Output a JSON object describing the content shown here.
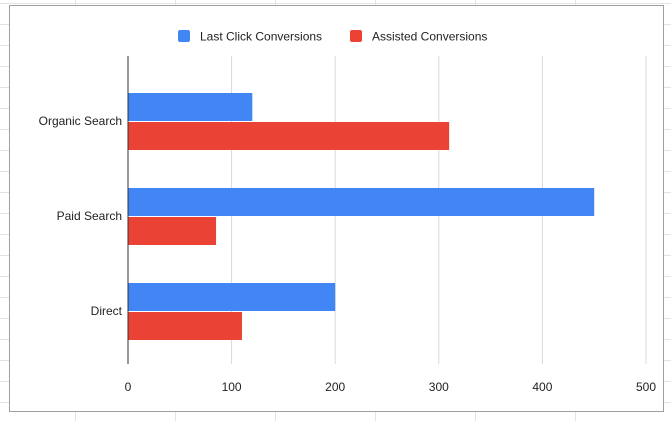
{
  "chart_data": {
    "type": "bar",
    "orientation": "horizontal",
    "title": "",
    "xlabel": "",
    "ylabel": "",
    "categories": [
      "Organic Search",
      "Paid Search",
      "Direct"
    ],
    "series": [
      {
        "name": "Last Click Conversions",
        "values": [
          120,
          450,
          200
        ],
        "color": "#4285f4"
      },
      {
        "name": "Assisted Conversions",
        "values": [
          310,
          85,
          110
        ],
        "color": "#ea4335"
      }
    ],
    "xlim": [
      0,
      500
    ],
    "ticks": [
      0,
      100,
      200,
      300,
      400,
      500
    ],
    "grid": true,
    "legend_position": "top"
  }
}
